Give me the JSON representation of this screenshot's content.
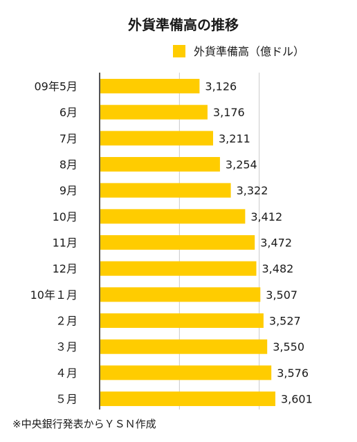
{
  "chart_data": {
    "type": "bar",
    "orientation": "horizontal",
    "title": "外貨準備高の推移",
    "legend": {
      "label": "外貨準備高（億ドル）",
      "placement": "top-right"
    },
    "categories": [
      "09年5月",
      "6月",
      "7月",
      "8月",
      "9月",
      "10月",
      "11月",
      "12月",
      "10年１月",
      "２月",
      "３月",
      "４月",
      "５月"
    ],
    "values": [
      3126,
      3176,
      3211,
      3254,
      3322,
      3412,
      3472,
      3482,
      3507,
      3527,
      3550,
      3576,
      3601
    ],
    "value_labels": [
      "3,126",
      "3,176",
      "3,211",
      "3,254",
      "3,322",
      "3,412",
      "3,472",
      "3,482",
      "3,507",
      "3,527",
      "3,550",
      "3,576",
      "3,601"
    ],
    "xlim": [
      2500,
      4000
    ],
    "grid": true,
    "bar_color": "#FFCC00"
  },
  "source_note": "※中央銀行発表からＹＳＮ作成"
}
